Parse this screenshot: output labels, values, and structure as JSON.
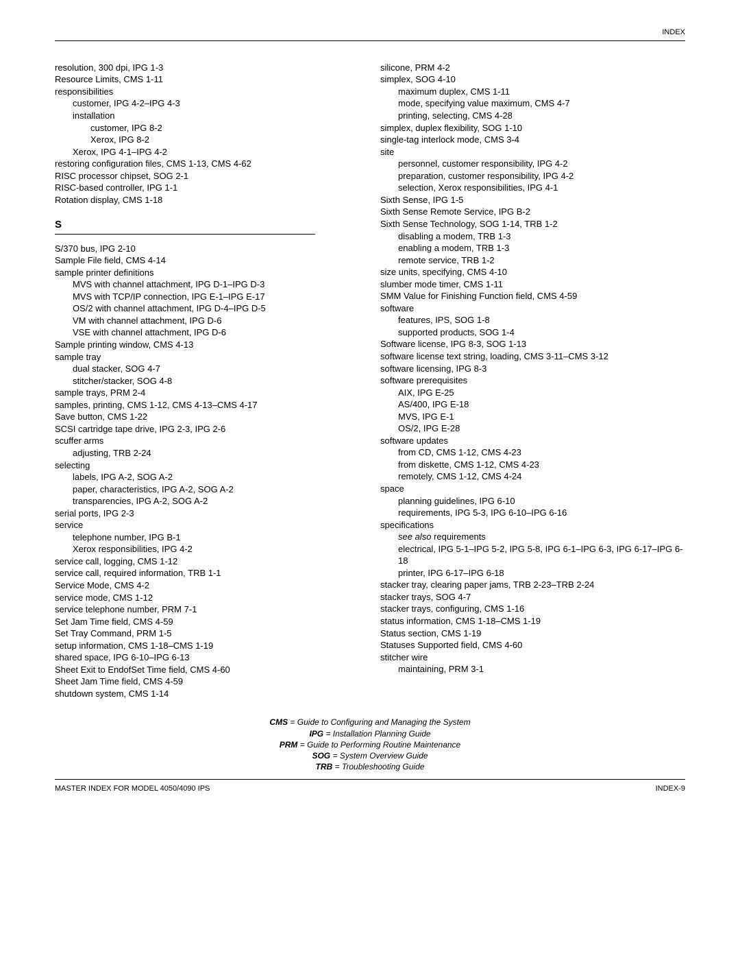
{
  "header": "INDEX",
  "leftColumn": [
    {
      "t": "resolution, 300 dpi, IPG 1-3",
      "i": 0
    },
    {
      "t": "Resource Limits, CMS 1-11",
      "i": 0
    },
    {
      "t": "responsibilities",
      "i": 0
    },
    {
      "t": "customer, IPG 4-2–IPG 4-3",
      "i": 1
    },
    {
      "t": "installation",
      "i": 1
    },
    {
      "t": "customer, IPG 8-2",
      "i": 2
    },
    {
      "t": "Xerox, IPG 8-2",
      "i": 2
    },
    {
      "t": "Xerox, IPG 4-1–IPG 4-2",
      "i": 1
    },
    {
      "t": "restoring configuration files, CMS 1-13, CMS 4-62",
      "i": 0
    },
    {
      "t": "RISC processor chipset, SOG 2-1",
      "i": 0
    },
    {
      "t": "RISC-based controller, IPG 1-1",
      "i": 0
    },
    {
      "t": "Rotation display, CMS 1-18",
      "i": 0
    }
  ],
  "sectionS": "S",
  "leftColumn2": [
    {
      "t": "S/370 bus, IPG 2-10",
      "i": 0
    },
    {
      "t": "Sample File field, CMS 4-14",
      "i": 0
    },
    {
      "t": "sample printer definitions",
      "i": 0
    },
    {
      "t": "MVS with channel attachment, IPG D-1–IPG D-3",
      "i": 1
    },
    {
      "t": "MVS with TCP/IP connection, IPG E-1–IPG E-17",
      "i": 1
    },
    {
      "t": "OS/2 with channel attachment, IPG D-4–IPG D-5",
      "i": 1
    },
    {
      "t": "VM with channel attachment, IPG D-6",
      "i": 1
    },
    {
      "t": "VSE with channel attachment, IPG D-6",
      "i": 1
    },
    {
      "t": "Sample printing window, CMS 4-13",
      "i": 0
    },
    {
      "t": "sample tray",
      "i": 0
    },
    {
      "t": "dual stacker, SOG 4-7",
      "i": 1
    },
    {
      "t": "stitcher/stacker, SOG 4-8",
      "i": 1
    },
    {
      "t": "sample trays, PRM 2-4",
      "i": 0
    },
    {
      "t": "samples, printing, CMS 1-12, CMS 4-13–CMS 4-17",
      "i": 0
    },
    {
      "t": "Save button, CMS 1-22",
      "i": 0
    },
    {
      "t": "SCSI cartridge tape drive, IPG 2-3, IPG 2-6",
      "i": 0
    },
    {
      "t": "scuffer arms",
      "i": 0
    },
    {
      "t": "adjusting, TRB 2-24",
      "i": 1
    },
    {
      "t": "selecting",
      "i": 0
    },
    {
      "t": "labels, IPG A-2, SOG A-2",
      "i": 1
    },
    {
      "t": "paper, characteristics, IPG A-2, SOG A-2",
      "i": 1
    },
    {
      "t": "transparencies, IPG A-2, SOG A-2",
      "i": 1
    },
    {
      "t": "serial ports, IPG 2-3",
      "i": 0
    },
    {
      "t": "service",
      "i": 0
    },
    {
      "t": "telephone number, IPG B-1",
      "i": 1
    },
    {
      "t": "Xerox responsibilities, IPG 4-2",
      "i": 1
    },
    {
      "t": "service call, logging, CMS 1-12",
      "i": 0
    },
    {
      "t": "service call, required information, TRB 1-1",
      "i": 0
    },
    {
      "t": "Service Mode, CMS 4-2",
      "i": 0
    },
    {
      "t": "service mode, CMS 1-12",
      "i": 0
    },
    {
      "t": "service telephone number, PRM 7-1",
      "i": 0
    },
    {
      "t": "Set Jam Time field, CMS 4-59",
      "i": 0
    },
    {
      "t": "Set Tray Command, PRM 1-5",
      "i": 0
    },
    {
      "t": "setup information, CMS 1-18–CMS 1-19",
      "i": 0
    },
    {
      "t": "shared space, IPG 6-10–IPG 6-13",
      "i": 0
    },
    {
      "t": "Sheet Exit to EndofSet Time field, CMS 4-60",
      "i": 0
    },
    {
      "t": "Sheet Jam Time field, CMS 4-59",
      "i": 0
    },
    {
      "t": "shutdown system, CMS 1-14",
      "i": 0
    }
  ],
  "rightColumn": [
    {
      "t": "silicone, PRM 4-2",
      "i": 0
    },
    {
      "t": "simplex, SOG 4-10",
      "i": 0
    },
    {
      "t": "maximum duplex, CMS 1-11",
      "i": 1
    },
    {
      "t": "mode, specifying value maximum, CMS 4-7",
      "i": 1
    },
    {
      "t": "printing, selecting, CMS 4-28",
      "i": 1
    },
    {
      "t": "simplex, duplex flexibility, SOG 1-10",
      "i": 0
    },
    {
      "t": "single-tag interlock mode, CMS 3-4",
      "i": 0
    },
    {
      "t": "site",
      "i": 0
    },
    {
      "t": "personnel, customer responsibility, IPG 4-2",
      "i": 1
    },
    {
      "t": "preparation, customer responsibility, IPG 4-2",
      "i": 1
    },
    {
      "t": "selection, Xerox responsibilities, IPG 4-1",
      "i": 1
    },
    {
      "t": "Sixth Sense, IPG 1-5",
      "i": 0
    },
    {
      "t": "Sixth Sense Remote Service, IPG B-2",
      "i": 0
    },
    {
      "t": "Sixth Sense Technology, SOG 1-14, TRB 1-2",
      "i": 0
    },
    {
      "t": "disabling a modem, TRB 1-3",
      "i": 1
    },
    {
      "t": "enabling a modem, TRB 1-3",
      "i": 1
    },
    {
      "t": "remote service, TRB 1-2",
      "i": 1
    },
    {
      "t": "size units, specifying, CMS 4-10",
      "i": 0
    },
    {
      "t": "slumber mode timer, CMS 1-11",
      "i": 0
    },
    {
      "t": "SMM Value for Finishing Function field, CMS 4-59",
      "i": 0
    },
    {
      "t": "software",
      "i": 0
    },
    {
      "t": "features, IPS, SOG 1-8",
      "i": 1
    },
    {
      "t": "supported products, SOG 1-4",
      "i": 1
    },
    {
      "t": "Software license, IPG 8-3, SOG 1-13",
      "i": 0
    },
    {
      "t": "software license text string, loading, CMS 3-11–CMS 3-12",
      "i": 0
    },
    {
      "t": "software licensing, IPG 8-3",
      "i": 0
    },
    {
      "t": "software prerequisites",
      "i": 0
    },
    {
      "t": "AIX, IPG E-25",
      "i": 1
    },
    {
      "t": "AS/400, IPG E-18",
      "i": 1
    },
    {
      "t": "MVS, IPG E-1",
      "i": 1
    },
    {
      "t": "OS/2, IPG E-28",
      "i": 1
    },
    {
      "t": "software updates",
      "i": 0
    },
    {
      "t": "from CD, CMS 1-12, CMS 4-23",
      "i": 1
    },
    {
      "t": "from diskette, CMS 1-12, CMS 4-23",
      "i": 1
    },
    {
      "t": "remotely, CMS 1-12, CMS 4-24",
      "i": 1
    },
    {
      "t": "space",
      "i": 0
    },
    {
      "t": "planning guidelines, IPG 6-10",
      "i": 1
    },
    {
      "t": "requirements, IPG 5-3, IPG 6-10–IPG 6-16",
      "i": 1
    },
    {
      "t": "specifications",
      "i": 0
    },
    {
      "t": "<em class='it'>see also</em> requirements",
      "i": 1,
      "html": true
    },
    {
      "t": "electrical, IPG 5-1–IPG 5-2, IPG 5-8, IPG 6-1–IPG 6-3, IPG 6-17–IPG 6-18",
      "i": 1
    },
    {
      "t": "printer, IPG 6-17–IPG 6-18",
      "i": 1
    },
    {
      "t": "stacker tray, clearing paper jams, TRB 2-23–TRB 2-24",
      "i": 0
    },
    {
      "t": "stacker trays, SOG 4-7",
      "i": 0
    },
    {
      "t": "stacker trays, configuring, CMS 1-16",
      "i": 0
    },
    {
      "t": "status information, CMS 1-18–CMS 1-19",
      "i": 0
    },
    {
      "t": "Status section, CMS 1-19",
      "i": 0
    },
    {
      "t": "Statuses Supported field, CMS 4-60",
      "i": 0
    },
    {
      "t": "stitcher wire",
      "i": 0
    },
    {
      "t": "maintaining, PRM 3-1",
      "i": 1
    }
  ],
  "legend": [
    {
      "k": "CMS",
      "d": "= Guide to Configuring and Managing the System"
    },
    {
      "k": "IPG",
      "d": "= Installation Planning Guide"
    },
    {
      "k": "PRM",
      "d": "= Guide to Performing Routine Maintenance"
    },
    {
      "k": "SOG",
      "d": "= System Overview Guide"
    },
    {
      "k": "TRB",
      "d": "= Troubleshooting Guide"
    }
  ],
  "footerLeft": "MASTER INDEX FOR MODEL 4050/4090 IPS",
  "footerRight": "INDEX-9"
}
